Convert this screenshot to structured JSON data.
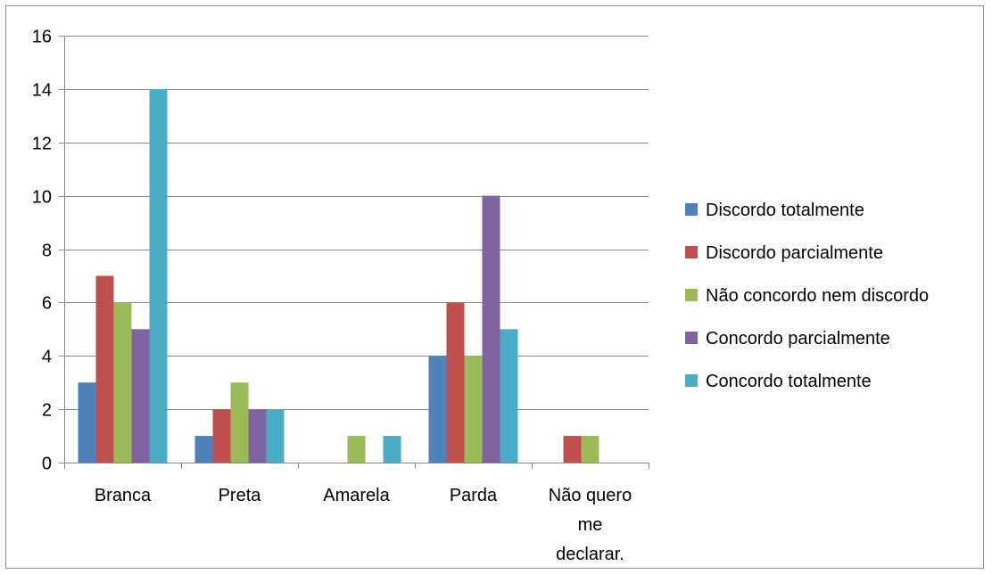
{
  "chart_data": {
    "type": "bar",
    "title": "",
    "xlabel": "",
    "ylabel": "",
    "categories": [
      "Branca",
      "Preta",
      "Amarela",
      "Parda",
      "Não quero me declarar."
    ],
    "category_label_lines": [
      [
        "Branca"
      ],
      [
        "Preta"
      ],
      [
        "Amarela"
      ],
      [
        "Parda"
      ],
      [
        "Não quero",
        "me",
        "declarar."
      ]
    ],
    "ylim": [
      0,
      16
    ],
    "yticks": [
      0,
      2,
      4,
      6,
      8,
      10,
      12,
      14,
      16
    ],
    "grid": true,
    "legend_position": "right",
    "series": [
      {
        "name": "Discordo totalmente",
        "color": "#4F81BD",
        "values": [
          3,
          1,
          0,
          4,
          0
        ]
      },
      {
        "name": "Discordo parcialmente",
        "color": "#C0504D",
        "values": [
          7,
          2,
          0,
          6,
          1
        ]
      },
      {
        "name": "Não concordo nem discordo",
        "color": "#9BBB59",
        "values": [
          6,
          3,
          1,
          4,
          1
        ]
      },
      {
        "name": "Concordo parcialmente",
        "color": "#8064A2",
        "values": [
          5,
          2,
          0,
          10,
          0
        ]
      },
      {
        "name": "Concordo totalmente",
        "color": "#4BACC6",
        "values": [
          14,
          2,
          1,
          5,
          0
        ]
      }
    ]
  }
}
